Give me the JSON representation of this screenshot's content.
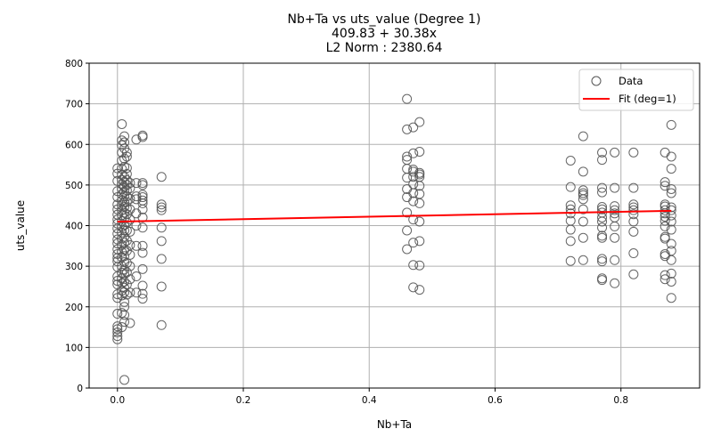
{
  "chart_data": {
    "type": "scatter",
    "title_lines": [
      "Nb+Ta vs uts_value (Degree 1)",
      "409.83 + 30.38x",
      "L2 Norm : 2380.64"
    ],
    "xlabel": "Nb+Ta",
    "ylabel": "uts_value",
    "xlim": [
      -0.045,
      0.925
    ],
    "ylim": [
      0,
      800
    ],
    "xticks": [
      0.0,
      0.2,
      0.4,
      0.6,
      0.8
    ],
    "xtick_labels": [
      "0.0",
      "0.2",
      "0.4",
      "0.6",
      "0.8"
    ],
    "yticks": [
      0,
      100,
      200,
      300,
      400,
      500,
      600,
      700,
      800
    ],
    "ytick_labels": [
      "0",
      "100",
      "200",
      "300",
      "400",
      "500",
      "600",
      "700",
      "800"
    ],
    "grid": true,
    "legend": {
      "placement": "top-right",
      "entries": [
        "Data",
        "Fit (deg=1)"
      ]
    },
    "colors": {
      "data_marker": "#555555",
      "fit_line": "#ff0000",
      "grid": "#b0b0b0"
    },
    "fit": {
      "intercept": 409.83,
      "slope": 30.38,
      "x_range": [
        0.0,
        0.88
      ]
    },
    "series": [
      {
        "name": "Data",
        "marker": "open-circle",
        "points": [
          [
            0.0,
            120
          ],
          [
            0.0,
            128
          ],
          [
            0.0,
            137
          ],
          [
            0.0,
            145
          ],
          [
            0.0,
            152
          ],
          [
            0.0,
            183
          ],
          [
            0.0,
            222
          ],
          [
            0.0,
            231
          ],
          [
            0.0,
            255
          ],
          [
            0.0,
            264
          ],
          [
            0.0,
            275
          ],
          [
            0.0,
            298
          ],
          [
            0.0,
            312
          ],
          [
            0.0,
            320
          ],
          [
            0.0,
            330
          ],
          [
            0.0,
            342
          ],
          [
            0.0,
            356
          ],
          [
            0.0,
            366
          ],
          [
            0.0,
            380
          ],
          [
            0.0,
            393
          ],
          [
            0.0,
            405
          ],
          [
            0.0,
            415
          ],
          [
            0.0,
            427
          ],
          [
            0.0,
            440
          ],
          [
            0.0,
            452
          ],
          [
            0.0,
            470
          ],
          [
            0.0,
            485
          ],
          [
            0.0,
            510
          ],
          [
            0.0,
            528
          ],
          [
            0.0,
            541
          ],
          [
            0.007,
            150
          ],
          [
            0.007,
            185
          ],
          [
            0.007,
            228
          ],
          [
            0.007,
            240
          ],
          [
            0.007,
            258
          ],
          [
            0.007,
            270
          ],
          [
            0.007,
            284
          ],
          [
            0.007,
            300
          ],
          [
            0.007,
            322
          ],
          [
            0.007,
            335
          ],
          [
            0.007,
            352
          ],
          [
            0.007,
            368
          ],
          [
            0.007,
            383
          ],
          [
            0.007,
            397
          ],
          [
            0.007,
            411
          ],
          [
            0.007,
            426
          ],
          [
            0.007,
            438
          ],
          [
            0.007,
            450
          ],
          [
            0.007,
            462
          ],
          [
            0.007,
            477
          ],
          [
            0.007,
            490
          ],
          [
            0.007,
            502
          ],
          [
            0.007,
            513
          ],
          [
            0.007,
            525
          ],
          [
            0.007,
            540
          ],
          [
            0.007,
            560
          ],
          [
            0.007,
            580
          ],
          [
            0.007,
            598
          ],
          [
            0.007,
            610
          ],
          [
            0.007,
            650
          ],
          [
            0.011,
            20
          ],
          [
            0.011,
            163
          ],
          [
            0.011,
            180
          ],
          [
            0.011,
            200
          ],
          [
            0.011,
            212
          ],
          [
            0.011,
            236
          ],
          [
            0.011,
            247
          ],
          [
            0.011,
            262
          ],
          [
            0.011,
            280
          ],
          [
            0.011,
            292
          ],
          [
            0.011,
            310
          ],
          [
            0.011,
            325
          ],
          [
            0.011,
            340
          ],
          [
            0.011,
            358
          ],
          [
            0.011,
            372
          ],
          [
            0.011,
            388
          ],
          [
            0.011,
            402
          ],
          [
            0.011,
            418
          ],
          [
            0.011,
            432
          ],
          [
            0.011,
            446
          ],
          [
            0.011,
            458
          ],
          [
            0.011,
            472
          ],
          [
            0.011,
            484
          ],
          [
            0.011,
            496
          ],
          [
            0.011,
            508
          ],
          [
            0.011,
            520
          ],
          [
            0.011,
            545
          ],
          [
            0.011,
            565
          ],
          [
            0.011,
            590
          ],
          [
            0.011,
            605
          ],
          [
            0.011,
            620
          ],
          [
            0.015,
            230
          ],
          [
            0.015,
            255
          ],
          [
            0.015,
            285
          ],
          [
            0.015,
            308
          ],
          [
            0.015,
            338
          ],
          [
            0.015,
            363
          ],
          [
            0.015,
            388
          ],
          [
            0.015,
            408
          ],
          [
            0.015,
            428
          ],
          [
            0.015,
            443
          ],
          [
            0.015,
            458
          ],
          [
            0.015,
            472
          ],
          [
            0.015,
            487
          ],
          [
            0.015,
            500
          ],
          [
            0.015,
            512
          ],
          [
            0.015,
            527
          ],
          [
            0.015,
            542
          ],
          [
            0.015,
            570
          ],
          [
            0.015,
            580
          ],
          [
            0.02,
            160
          ],
          [
            0.02,
            235
          ],
          [
            0.02,
            268
          ],
          [
            0.02,
            300
          ],
          [
            0.02,
            328
          ],
          [
            0.02,
            352
          ],
          [
            0.02,
            385
          ],
          [
            0.02,
            415
          ],
          [
            0.02,
            440
          ],
          [
            0.02,
            466
          ],
          [
            0.02,
            492
          ],
          [
            0.02,
            505
          ],
          [
            0.03,
            235
          ],
          [
            0.03,
            275
          ],
          [
            0.03,
            350
          ],
          [
            0.03,
            400
          ],
          [
            0.03,
            430
          ],
          [
            0.03,
            465
          ],
          [
            0.03,
            472
          ],
          [
            0.03,
            505
          ],
          [
            0.03,
            612
          ],
          [
            0.04,
            220
          ],
          [
            0.04,
            232
          ],
          [
            0.04,
            252
          ],
          [
            0.04,
            293
          ],
          [
            0.04,
            333
          ],
          [
            0.04,
            350
          ],
          [
            0.04,
            395
          ],
          [
            0.04,
            420
          ],
          [
            0.04,
            440
          ],
          [
            0.04,
            455
          ],
          [
            0.04,
            462
          ],
          [
            0.04,
            470
          ],
          [
            0.04,
            476
          ],
          [
            0.04,
            500
          ],
          [
            0.04,
            505
          ],
          [
            0.04,
            618
          ],
          [
            0.04,
            622
          ],
          [
            0.07,
            155
          ],
          [
            0.07,
            250
          ],
          [
            0.07,
            318
          ],
          [
            0.07,
            362
          ],
          [
            0.07,
            395
          ],
          [
            0.07,
            438
          ],
          [
            0.07,
            445
          ],
          [
            0.07,
            452
          ],
          [
            0.07,
            520
          ],
          [
            0.46,
            342
          ],
          [
            0.46,
            388
          ],
          [
            0.46,
            432
          ],
          [
            0.46,
            470
          ],
          [
            0.46,
            490
          ],
          [
            0.46,
            518
          ],
          [
            0.46,
            540
          ],
          [
            0.46,
            562
          ],
          [
            0.46,
            570
          ],
          [
            0.46,
            637
          ],
          [
            0.46,
            712
          ],
          [
            0.47,
            248
          ],
          [
            0.47,
            303
          ],
          [
            0.47,
            358
          ],
          [
            0.47,
            415
          ],
          [
            0.47,
            460
          ],
          [
            0.47,
            480
          ],
          [
            0.47,
            502
          ],
          [
            0.47,
            520
          ],
          [
            0.47,
            533
          ],
          [
            0.47,
            538
          ],
          [
            0.47,
            578
          ],
          [
            0.47,
            642
          ],
          [
            0.48,
            242
          ],
          [
            0.48,
            302
          ],
          [
            0.48,
            362
          ],
          [
            0.48,
            410
          ],
          [
            0.48,
            455
          ],
          [
            0.48,
            478
          ],
          [
            0.48,
            498
          ],
          [
            0.48,
            520
          ],
          [
            0.48,
            526
          ],
          [
            0.48,
            530
          ],
          [
            0.48,
            582
          ],
          [
            0.48,
            655
          ],
          [
            0.72,
            313
          ],
          [
            0.72,
            362
          ],
          [
            0.72,
            390
          ],
          [
            0.72,
            412
          ],
          [
            0.72,
            430
          ],
          [
            0.72,
            440
          ],
          [
            0.72,
            450
          ],
          [
            0.72,
            495
          ],
          [
            0.72,
            560
          ],
          [
            0.74,
            315
          ],
          [
            0.74,
            370
          ],
          [
            0.74,
            410
          ],
          [
            0.74,
            440
          ],
          [
            0.74,
            465
          ],
          [
            0.74,
            475
          ],
          [
            0.74,
            480
          ],
          [
            0.74,
            487
          ],
          [
            0.74,
            533
          ],
          [
            0.74,
            620
          ],
          [
            0.77,
            266
          ],
          [
            0.77,
            270
          ],
          [
            0.77,
            312
          ],
          [
            0.77,
            318
          ],
          [
            0.77,
            370
          ],
          [
            0.77,
            375
          ],
          [
            0.77,
            395
          ],
          [
            0.77,
            410
          ],
          [
            0.77,
            420
          ],
          [
            0.77,
            432
          ],
          [
            0.77,
            440
          ],
          [
            0.77,
            446
          ],
          [
            0.77,
            482
          ],
          [
            0.77,
            493
          ],
          [
            0.77,
            562
          ],
          [
            0.77,
            580
          ],
          [
            0.79,
            258
          ],
          [
            0.79,
            315
          ],
          [
            0.79,
            370
          ],
          [
            0.79,
            398
          ],
          [
            0.79,
            420
          ],
          [
            0.79,
            430
          ],
          [
            0.79,
            438
          ],
          [
            0.79,
            448
          ],
          [
            0.79,
            493
          ],
          [
            0.79,
            580
          ],
          [
            0.82,
            280
          ],
          [
            0.82,
            332
          ],
          [
            0.82,
            385
          ],
          [
            0.82,
            410
          ],
          [
            0.82,
            428
          ],
          [
            0.82,
            438
          ],
          [
            0.82,
            445
          ],
          [
            0.82,
            452
          ],
          [
            0.82,
            493
          ],
          [
            0.82,
            580
          ],
          [
            0.87,
            268
          ],
          [
            0.87,
            278
          ],
          [
            0.87,
            325
          ],
          [
            0.87,
            330
          ],
          [
            0.87,
            368
          ],
          [
            0.87,
            372
          ],
          [
            0.87,
            398
          ],
          [
            0.87,
            412
          ],
          [
            0.87,
            422
          ],
          [
            0.87,
            430
          ],
          [
            0.87,
            438
          ],
          [
            0.87,
            447
          ],
          [
            0.87,
            452
          ],
          [
            0.87,
            498
          ],
          [
            0.87,
            507
          ],
          [
            0.87,
            580
          ],
          [
            0.88,
            222
          ],
          [
            0.88,
            262
          ],
          [
            0.88,
            282
          ],
          [
            0.88,
            315
          ],
          [
            0.88,
            338
          ],
          [
            0.88,
            355
          ],
          [
            0.88,
            390
          ],
          [
            0.88,
            410
          ],
          [
            0.88,
            425
          ],
          [
            0.88,
            438
          ],
          [
            0.88,
            445
          ],
          [
            0.88,
            480
          ],
          [
            0.88,
            490
          ],
          [
            0.88,
            540
          ],
          [
            0.88,
            570
          ],
          [
            0.88,
            648
          ]
        ]
      }
    ]
  }
}
